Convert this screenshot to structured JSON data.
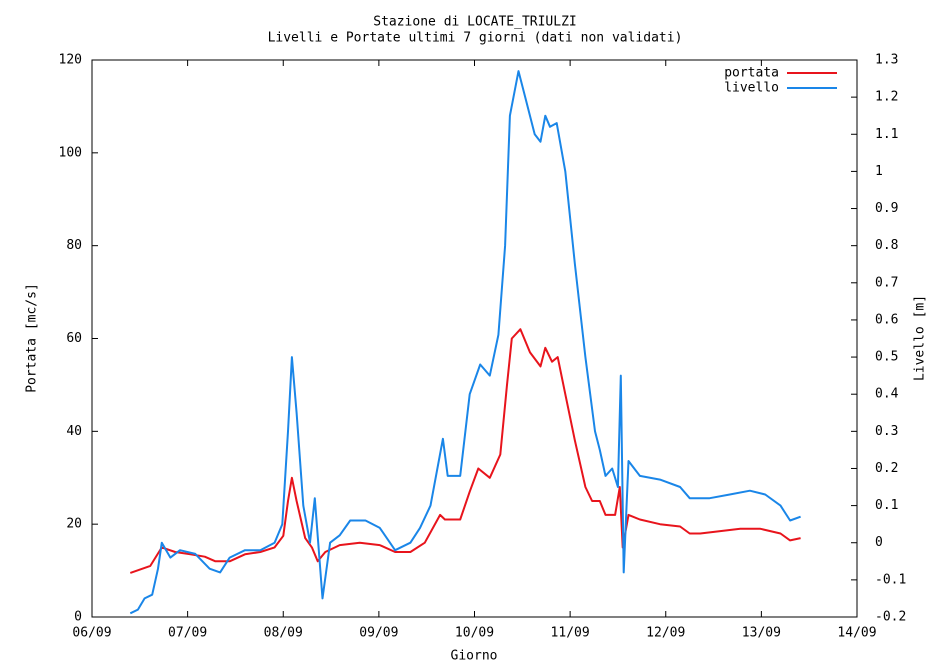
{
  "chart_data": {
    "type": "line",
    "title": "Stazione di LOCATE_TRIULZI",
    "subtitle": "Livelli e Portate ultimi 7 giorni (dati non validati)",
    "x_label": "Giorno",
    "y_label": "Portata [mc/s]",
    "y2_label": "Livello [m]",
    "xlim": [
      6,
      14
    ],
    "xticks": [
      {
        "value": 6,
        "label": "06/09"
      },
      {
        "value": 7,
        "label": "07/09"
      },
      {
        "value": 8,
        "label": "08/09"
      },
      {
        "value": 9,
        "label": "09/09"
      },
      {
        "value": 10,
        "label": "10/09"
      },
      {
        "value": 11,
        "label": "11/09"
      },
      {
        "value": 12,
        "label": "12/09"
      },
      {
        "value": 13,
        "label": "13/09"
      },
      {
        "value": 14,
        "label": "14/09"
      }
    ],
    "ylim": [
      0,
      120
    ],
    "yticks": [
      0,
      20,
      40,
      60,
      80,
      100,
      120
    ],
    "y2lim": [
      -0.2,
      1.3
    ],
    "y2ticks": [
      -0.2,
      -0.1,
      0,
      0.1,
      0.2,
      0.3,
      0.4,
      0.5,
      0.6,
      0.7,
      0.8,
      0.9,
      1,
      1.1,
      1.2,
      1.3
    ],
    "legend": "upper-right",
    "series": [
      {
        "name": "portata",
        "color": "#e8141c",
        "x": [
          6.4,
          6.61,
          6.73,
          6.87,
          7.03,
          7.18,
          7.29,
          7.44,
          7.6,
          7.76,
          7.91,
          8.0,
          8.05,
          8.09,
          8.14,
          8.23,
          8.3,
          8.36,
          8.44,
          8.59,
          8.8,
          9.01,
          9.17,
          9.33,
          9.48,
          9.64,
          9.69,
          9.85,
          9.95,
          10.04,
          10.16,
          10.27,
          10.34,
          10.39,
          10.48,
          10.58,
          10.69,
          10.74,
          10.81,
          10.87,
          10.95,
          11.05,
          11.16,
          11.23,
          11.31,
          11.37,
          11.47,
          11.52,
          11.55,
          11.61,
          11.73,
          11.94,
          12.15,
          12.25,
          12.36,
          12.57,
          12.78,
          12.99,
          13.2,
          13.3,
          13.41
        ],
        "values": [
          9.5,
          11,
          15,
          14,
          13.5,
          13,
          12,
          12,
          13.5,
          14,
          15,
          17.5,
          25,
          30,
          25,
          17,
          15,
          12,
          14,
          15.5,
          16,
          15.5,
          14,
          14,
          16,
          22,
          21,
          21,
          27,
          32,
          30,
          35,
          50,
          60,
          62,
          57,
          54,
          58,
          55,
          56,
          48,
          38,
          28,
          25,
          25,
          22,
          22,
          28,
          15,
          22,
          21,
          20,
          19.5,
          18,
          18,
          18.5,
          19,
          19,
          18,
          16.5,
          17
        ]
      },
      {
        "name": "livello",
        "color": "#1a86e8",
        "axis": "y2",
        "x": [
          6.4,
          6.48,
          6.55,
          6.63,
          6.69,
          6.73,
          6.82,
          6.92,
          7.08,
          7.23,
          7.34,
          7.44,
          7.6,
          7.76,
          7.91,
          7.99,
          8.05,
          8.09,
          8.14,
          8.21,
          8.28,
          8.33,
          8.41,
          8.49,
          8.59,
          8.7,
          8.86,
          9.01,
          9.17,
          9.33,
          9.43,
          9.54,
          9.67,
          9.72,
          9.85,
          9.95,
          10.06,
          10.16,
          10.25,
          10.32,
          10.37,
          10.46,
          10.53,
          10.63,
          10.69,
          10.74,
          10.79,
          10.86,
          10.95,
          11.05,
          11.16,
          11.26,
          11.31,
          11.37,
          11.44,
          11.5,
          11.53,
          11.56,
          11.61,
          11.73,
          11.94,
          12.15,
          12.25,
          12.46,
          12.67,
          12.88,
          13.04,
          13.2,
          13.3,
          13.41
        ],
        "values": [
          -0.19,
          -0.18,
          -0.15,
          -0.14,
          -0.07,
          0.0,
          -0.04,
          -0.02,
          -0.03,
          -0.07,
          -0.08,
          -0.04,
          -0.02,
          -0.02,
          0.0,
          0.05,
          0.3,
          0.5,
          0.35,
          0.1,
          0.0,
          0.12,
          -0.15,
          0.0,
          0.02,
          0.06,
          0.06,
          0.04,
          -0.02,
          0.0,
          0.04,
          0.1,
          0.28,
          0.18,
          0.18,
          0.4,
          0.48,
          0.45,
          0.56,
          0.8,
          1.15,
          1.27,
          1.2,
          1.1,
          1.08,
          1.15,
          1.12,
          1.13,
          1.0,
          0.75,
          0.5,
          0.3,
          0.25,
          0.18,
          0.2,
          0.15,
          0.45,
          -0.08,
          0.22,
          0.18,
          0.17,
          0.15,
          0.12,
          0.12,
          0.13,
          0.14,
          0.13,
          0.1,
          0.06,
          0.07
        ]
      }
    ]
  }
}
